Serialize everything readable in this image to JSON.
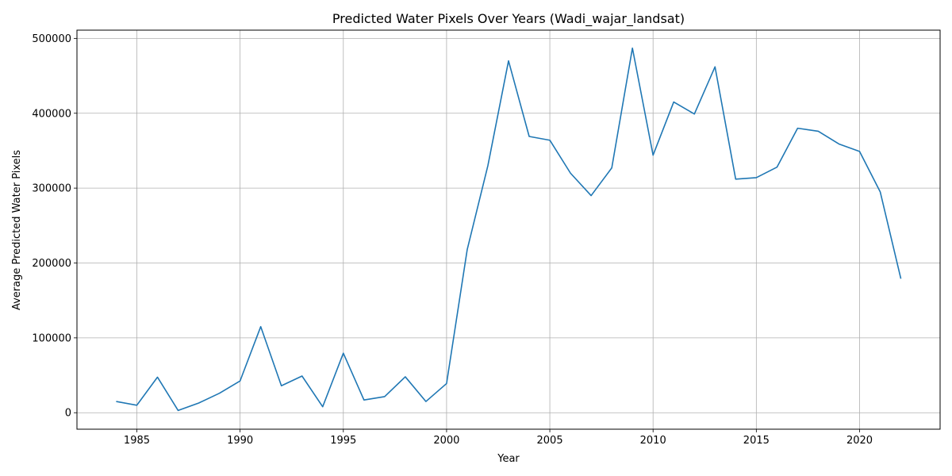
{
  "chart_data": {
    "type": "line",
    "title": "Predicted Water Pixels Over Years (Wadi_wajar_landsat)",
    "xlabel": "Year",
    "ylabel": "Average Predicted Water Pixels",
    "xlim": [
      1982.1,
      2023.9
    ],
    "ylim": [
      -22000,
      511000
    ],
    "x_ticks": [
      1985,
      1990,
      1995,
      2000,
      2005,
      2010,
      2015,
      2020
    ],
    "y_ticks": [
      0,
      100000,
      200000,
      300000,
      400000,
      500000
    ],
    "grid": true,
    "series": [
      {
        "color": "#1f77b4",
        "x": [
          1984,
          1985,
          1986,
          1987,
          1988,
          1989,
          1990,
          1991,
          1992,
          1993,
          1994,
          1995,
          1996,
          1997,
          1998,
          1999,
          2000,
          2001,
          2002,
          2003,
          2004,
          2005,
          2006,
          2007,
          2008,
          2009,
          2010,
          2011,
          2012,
          2013,
          2014,
          2015,
          2016,
          2017,
          2018,
          2019,
          2020,
          2021,
          2022
        ],
        "y": [
          15000,
          10000,
          47500,
          3000,
          13000,
          26000,
          42500,
          115000,
          36000,
          49000,
          8000,
          79500,
          17000,
          21500,
          48000,
          15000,
          39000,
          218000,
          330000,
          470000,
          369000,
          364000,
          320000,
          290000,
          327000,
          487000,
          344000,
          415000,
          399000,
          462000,
          312000,
          314000,
          328000,
          380000,
          376000,
          359000,
          349000,
          295000,
          179000
        ]
      }
    ]
  }
}
